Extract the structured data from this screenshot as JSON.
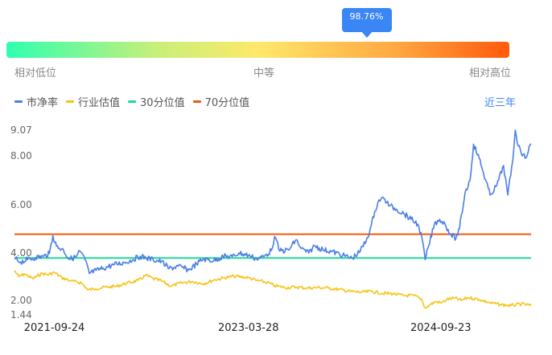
{
  "gauge": {
    "percent_label": "98.76%",
    "percentile": 0.9876,
    "low_label": "相对低位",
    "mid_label": "中等",
    "high_label": "相对高位"
  },
  "legend": {
    "pb": "市净率",
    "industry": "行业估值",
    "p30": "30分位值",
    "p70": "70分位值"
  },
  "range_label": "近三年",
  "colors": {
    "pb": "#4a7ee6",
    "industry": "#f5c518",
    "p30": "#1ed99a",
    "p70": "#f05a10"
  },
  "chart_data": {
    "type": "line",
    "title": "",
    "xlabel": "",
    "ylabel": "",
    "x_tick_labels": [
      "2021-09-24",
      "2023-03-28",
      "2024-09-23"
    ],
    "y_tick_labels": [
      "9.07",
      "8.00",
      "6.00",
      "4.00",
      "2.00",
      "1.44"
    ],
    "ylim": [
      1.44,
      9.07
    ],
    "x_range": [
      "2021-06-03",
      "2025-06-06"
    ],
    "reference_lines": [
      {
        "name": "30分位值",
        "value": 3.79
      },
      {
        "name": "70分位值",
        "value": 4.78
      }
    ],
    "series": [
      {
        "name": "市净率",
        "values": [
          [
            "2021-06-03",
            3.78
          ],
          [
            "2021-06-20",
            3.62
          ],
          [
            "2021-07-10",
            3.72
          ],
          [
            "2021-08-01",
            3.81
          ],
          [
            "2021-08-25",
            3.86
          ],
          [
            "2021-09-10",
            3.98
          ],
          [
            "2021-09-20",
            4.72
          ],
          [
            "2021-09-30",
            4.28
          ],
          [
            "2021-10-20",
            4.12
          ],
          [
            "2021-11-05",
            3.74
          ],
          [
            "2021-11-25",
            3.84
          ],
          [
            "2021-12-05",
            4.08
          ],
          [
            "2021-12-20",
            3.72
          ],
          [
            "2022-01-01",
            3.14
          ],
          [
            "2022-01-20",
            3.26
          ],
          [
            "2022-02-10",
            3.36
          ],
          [
            "2022-03-10",
            3.5
          ],
          [
            "2022-04-10",
            3.6
          ],
          [
            "2022-05-05",
            3.72
          ],
          [
            "2022-05-25",
            3.86
          ],
          [
            "2022-06-10",
            3.8
          ],
          [
            "2022-07-01",
            3.72
          ],
          [
            "2022-07-25",
            3.64
          ],
          [
            "2022-08-15",
            3.34
          ],
          [
            "2022-09-10",
            3.44
          ],
          [
            "2022-10-10",
            3.28
          ],
          [
            "2022-11-01",
            3.54
          ],
          [
            "2022-11-20",
            3.74
          ],
          [
            "2022-12-20",
            3.68
          ],
          [
            "2023-01-15",
            3.86
          ],
          [
            "2023-02-10",
            3.84
          ],
          [
            "2023-03-01",
            4.0
          ],
          [
            "2023-03-28",
            3.9
          ],
          [
            "2023-04-20",
            3.76
          ],
          [
            "2023-05-10",
            3.84
          ],
          [
            "2023-06-01",
            4.1
          ],
          [
            "2023-06-10",
            4.68
          ],
          [
            "2023-06-25",
            4.08
          ],
          [
            "2023-07-20",
            4.12
          ],
          [
            "2023-08-10",
            4.55
          ],
          [
            "2023-08-25",
            4.18
          ],
          [
            "2023-09-15",
            4.0
          ],
          [
            "2023-10-01",
            4.3
          ],
          [
            "2023-10-25",
            4.14
          ],
          [
            "2023-11-20",
            4.06
          ],
          [
            "2023-12-20",
            3.9
          ],
          [
            "2024-01-15",
            3.78
          ],
          [
            "2024-02-05",
            4.02
          ],
          [
            "2024-02-25",
            4.52
          ],
          [
            "2024-03-10",
            5.12
          ],
          [
            "2024-03-20",
            5.72
          ],
          [
            "2024-04-01",
            6.2
          ],
          [
            "2024-04-15",
            6.26
          ],
          [
            "2024-05-01",
            5.96
          ],
          [
            "2024-05-20",
            5.82
          ],
          [
            "2024-06-10",
            5.64
          ],
          [
            "2024-07-01",
            5.4
          ],
          [
            "2024-07-20",
            5.2
          ],
          [
            "2024-08-01",
            4.6
          ],
          [
            "2024-08-10",
            3.72
          ],
          [
            "2024-08-20",
            4.3
          ],
          [
            "2024-09-05",
            5.2
          ],
          [
            "2024-09-20",
            5.4
          ],
          [
            "2024-10-05",
            5.2
          ],
          [
            "2024-10-20",
            4.8
          ],
          [
            "2024-11-05",
            4.6
          ],
          [
            "2024-11-15",
            5.0
          ],
          [
            "2024-12-01",
            6.5
          ],
          [
            "2024-12-15",
            7.0
          ],
          [
            "2024-12-25",
            8.48
          ],
          [
            "2025-01-10",
            7.9
          ],
          [
            "2025-01-20",
            7.4
          ],
          [
            "2025-02-10",
            6.4
          ],
          [
            "2025-03-01",
            6.8
          ],
          [
            "2025-03-20",
            7.6
          ],
          [
            "2025-04-01",
            6.4
          ],
          [
            "2025-04-15",
            7.8
          ],
          [
            "2025-04-22",
            9.07
          ],
          [
            "2025-05-01",
            8.4
          ],
          [
            "2025-05-20",
            7.9
          ],
          [
            "2025-06-06",
            8.5
          ]
        ]
      },
      {
        "name": "行业估值",
        "values": [
          [
            "2021-06-03",
            3.26
          ],
          [
            "2021-06-15",
            3.0
          ],
          [
            "2021-07-01",
            3.12
          ],
          [
            "2021-07-25",
            2.92
          ],
          [
            "2021-08-20",
            3.14
          ],
          [
            "2021-09-05",
            3.08
          ],
          [
            "2021-09-24",
            3.18
          ],
          [
            "2021-10-15",
            2.96
          ],
          [
            "2021-11-10",
            2.82
          ],
          [
            "2021-12-10",
            2.74
          ],
          [
            "2021-12-28",
            2.44
          ],
          [
            "2022-01-20",
            2.5
          ],
          [
            "2022-02-20",
            2.56
          ],
          [
            "2022-03-20",
            2.6
          ],
          [
            "2022-04-20",
            2.74
          ],
          [
            "2022-05-20",
            2.84
          ],
          [
            "2022-06-10",
            3.06
          ],
          [
            "2022-07-01",
            2.92
          ],
          [
            "2022-07-25",
            2.82
          ],
          [
            "2022-08-20",
            2.6
          ],
          [
            "2022-09-20",
            2.74
          ],
          [
            "2022-10-20",
            2.8
          ],
          [
            "2022-11-20",
            2.7
          ],
          [
            "2022-12-20",
            2.86
          ],
          [
            "2023-01-20",
            2.96
          ],
          [
            "2023-02-15",
            3.02
          ],
          [
            "2023-03-28",
            2.96
          ],
          [
            "2023-04-20",
            2.84
          ],
          [
            "2023-05-20",
            2.76
          ],
          [
            "2023-06-10",
            2.62
          ],
          [
            "2023-07-10",
            2.54
          ],
          [
            "2023-08-10",
            2.56
          ],
          [
            "2023-09-10",
            2.52
          ],
          [
            "2023-10-10",
            2.54
          ],
          [
            "2023-11-10",
            2.52
          ],
          [
            "2023-12-10",
            2.46
          ],
          [
            "2024-01-10",
            2.38
          ],
          [
            "2024-02-10",
            2.34
          ],
          [
            "2024-03-10",
            2.38
          ],
          [
            "2024-04-10",
            2.3
          ],
          [
            "2024-05-10",
            2.28
          ],
          [
            "2024-06-10",
            2.2
          ],
          [
            "2024-07-10",
            2.2
          ],
          [
            "2024-07-30",
            2.06
          ],
          [
            "2024-08-10",
            1.7
          ],
          [
            "2024-08-25",
            1.84
          ],
          [
            "2024-09-10",
            1.96
          ],
          [
            "2024-09-25",
            1.9
          ],
          [
            "2024-10-10",
            2.04
          ],
          [
            "2024-11-01",
            2.1
          ],
          [
            "2024-11-20",
            2.0
          ],
          [
            "2024-12-10",
            2.12
          ],
          [
            "2025-01-10",
            2.04
          ],
          [
            "2025-02-10",
            1.9
          ],
          [
            "2025-03-10",
            1.84
          ],
          [
            "2025-04-10",
            1.8
          ],
          [
            "2025-05-10",
            1.86
          ],
          [
            "2025-06-06",
            1.8
          ]
        ]
      }
    ]
  }
}
